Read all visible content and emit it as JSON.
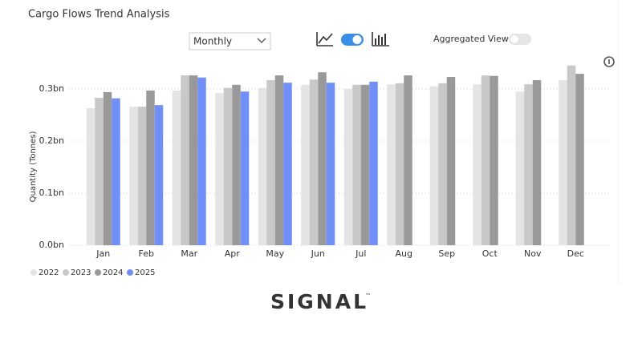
{
  "chart_data": {
    "type": "bar",
    "title": "Cargo Flows Trend Analysis",
    "ylabel": "Quantity (Tonnes)",
    "categories": [
      "Jan",
      "Feb",
      "Mar",
      "Apr",
      "May",
      "Jun",
      "Jul",
      "Aug",
      "Sep",
      "Oct",
      "Nov",
      "Dec"
    ],
    "series": [
      {
        "name": "2022",
        "color": "#e4e4e4",
        "values": [
          0.263,
          0.266,
          0.297,
          0.292,
          0.302,
          0.308,
          0.3,
          0.309,
          0.305,
          0.309,
          0.295,
          0.317
        ]
      },
      {
        "name": "2023",
        "color": "#c8c8c8",
        "values": [
          0.283,
          0.266,
          0.326,
          0.302,
          0.317,
          0.318,
          0.308,
          0.311,
          0.311,
          0.326,
          0.309,
          0.345
        ]
      },
      {
        "name": "2024",
        "color": "#999999",
        "values": [
          0.294,
          0.297,
          0.326,
          0.308,
          0.326,
          0.332,
          0.308,
          0.326,
          0.323,
          0.325,
          0.317,
          0.329
        ]
      },
      {
        "name": "2025",
        "color": "#7090f8",
        "values": [
          0.282,
          0.269,
          0.322,
          0.295,
          0.312,
          0.312,
          0.314,
          null,
          null,
          null,
          null,
          null
        ]
      }
    ],
    "ylim": [
      0,
      0.35
    ],
    "yticks": [
      {
        "value": 0,
        "label": "0.0bn"
      },
      {
        "value": 0.1,
        "label": "0.1bn"
      },
      {
        "value": 0.2,
        "label": "0.2bn"
      },
      {
        "value": 0.3,
        "label": "0.3bn"
      }
    ],
    "grid": true,
    "legend": "bottom-left"
  },
  "controls": {
    "period": "Monthly",
    "aggregated_label": "Aggregated View"
  },
  "logo": {
    "name": "SIGNAL",
    "mark": "™"
  }
}
